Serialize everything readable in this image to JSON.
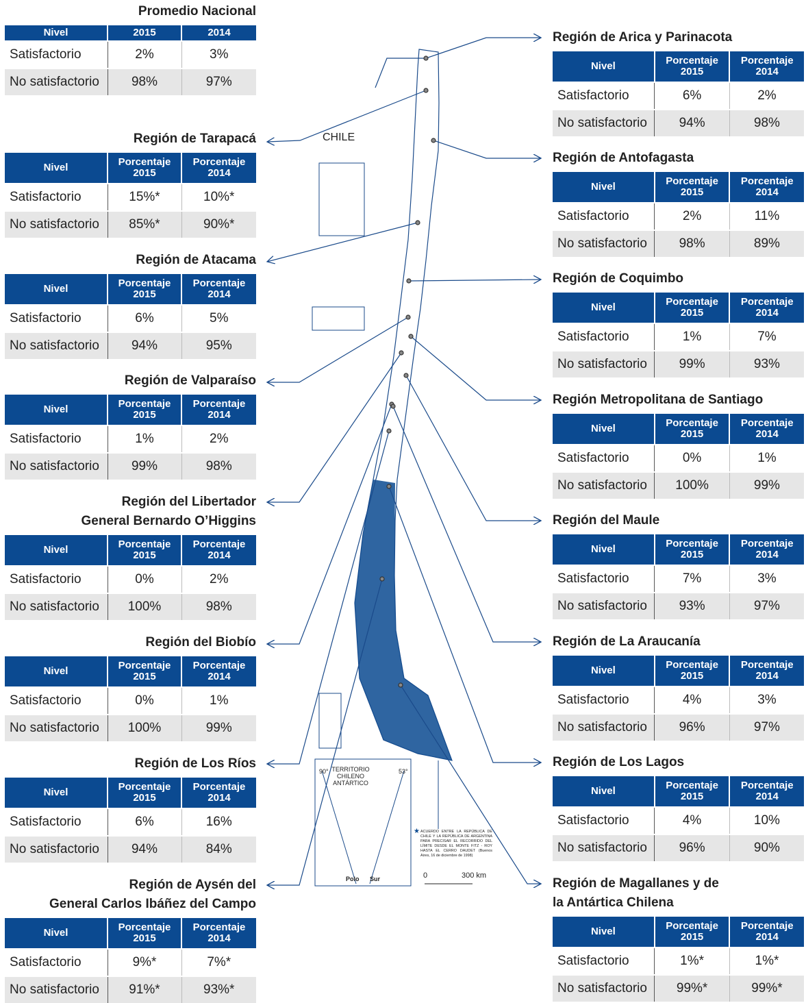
{
  "left": [
    {
      "title": "Promedio Nacional",
      "header": [
        "Nivel",
        "2015",
        "2014"
      ],
      "rows": [
        [
          "Satisfactorio",
          "2%",
          "3%"
        ],
        [
          "No satisfactorio",
          "98%",
          "97%"
        ]
      ]
    },
    {
      "title": "Región de Tarapacá",
      "header": [
        "Nivel",
        "Porcentaje\n2015",
        "Porcentaje\n2014"
      ],
      "rows": [
        [
          "Satisfactorio",
          "15%*",
          "10%*"
        ],
        [
          "No satisfactorio",
          "85%*",
          "90%*"
        ]
      ]
    },
    {
      "title": "Región de Atacama",
      "header": [
        "Nivel",
        "Porcentaje\n2015",
        "Porcentaje\n2014"
      ],
      "rows": [
        [
          "Satisfactorio",
          "6%",
          "5%"
        ],
        [
          "No satisfactorio",
          "94%",
          "95%"
        ]
      ]
    },
    {
      "title": "Región de Valparaíso",
      "header": [
        "Nivel",
        "Porcentaje\n2015",
        "Porcentaje\n2014"
      ],
      "rows": [
        [
          "Satisfactorio",
          "1%",
          "2%"
        ],
        [
          "No satisfactorio",
          "99%",
          "98%"
        ]
      ]
    },
    {
      "title": "Región del Libertador\nGeneral Bernardo O’Higgins",
      "header": [
        "Nivel",
        "Porcentaje\n2015",
        "Porcentaje\n2014"
      ],
      "rows": [
        [
          "Satisfactorio",
          "0%",
          "2%"
        ],
        [
          "No satisfactorio",
          "100%",
          "98%"
        ]
      ]
    },
    {
      "title": "Región del Biobío",
      "header": [
        "Nivel",
        "Porcentaje\n2015",
        "Porcentaje\n2014"
      ],
      "rows": [
        [
          "Satisfactorio",
          "0%",
          "1%"
        ],
        [
          "No satisfactorio",
          "100%",
          "99%"
        ]
      ]
    },
    {
      "title": "Región de Los Ríos",
      "header": [
        "Nivel",
        "Porcentaje\n2015",
        "Porcentaje\n2014"
      ],
      "rows": [
        [
          "Satisfactorio",
          "6%",
          "16%"
        ],
        [
          "No satisfactorio",
          "94%",
          "84%"
        ]
      ]
    },
    {
      "title": "Región de Aysén del\nGeneral Carlos Ibáñez del Campo",
      "header": [
        "Nivel",
        "Porcentaje\n2015",
        "Porcentaje\n2014"
      ],
      "rows": [
        [
          "Satisfactorio",
          "9%*",
          "7%*"
        ],
        [
          "No satisfactorio",
          "91%*",
          "93%*"
        ]
      ]
    }
  ],
  "right": [
    {
      "title": "Región de Arica y Parinacota",
      "header": [
        "Nivel",
        "Porcentaje\n2015",
        "Porcentaje\n2014"
      ],
      "rows": [
        [
          "Satisfactorio",
          "6%",
          "2%"
        ],
        [
          "No satisfactorio",
          "94%",
          "98%"
        ]
      ]
    },
    {
      "title": "Región de Antofagasta",
      "header": [
        "Nivel",
        "Porcentaje\n2015",
        "Porcentaje\n2014"
      ],
      "rows": [
        [
          "Satisfactorio",
          "2%",
          "11%"
        ],
        [
          "No satisfactorio",
          "98%",
          "89%"
        ]
      ]
    },
    {
      "title": "Región de Coquimbo",
      "header": [
        "Nivel",
        "Porcentaje\n2015",
        "Porcentaje\n2014"
      ],
      "rows": [
        [
          "Satisfactorio",
          "1%",
          "7%"
        ],
        [
          "No satisfactorio",
          "99%",
          "93%"
        ]
      ]
    },
    {
      "title": "Región Metropolitana de Santiago",
      "header": [
        "Nivel",
        "Porcentaje\n2015",
        "Porcentaje\n2014"
      ],
      "rows": [
        [
          "Satisfactorio",
          "0%",
          "1%"
        ],
        [
          "No satisfactorio",
          "100%",
          "99%"
        ]
      ]
    },
    {
      "title": "Región del Maule",
      "header": [
        "Nivel",
        "Porcentaje\n2015",
        "Porcentaje\n2014"
      ],
      "rows": [
        [
          "Satisfactorio",
          "7%",
          "3%"
        ],
        [
          "No satisfactorio",
          "93%",
          "97%"
        ]
      ]
    },
    {
      "title": "Región de La Araucanía",
      "header": [
        "Nivel",
        "Porcentaje\n2015",
        "Porcentaje\n2014"
      ],
      "rows": [
        [
          "Satisfactorio",
          "4%",
          "3%"
        ],
        [
          "No satisfactorio",
          "96%",
          "97%"
        ]
      ]
    },
    {
      "title": "Región de Los Lagos",
      "header": [
        "Nivel",
        "Porcentaje\n2015",
        "Porcentaje\n2014"
      ],
      "rows": [
        [
          "Satisfactorio",
          "4%",
          "10%"
        ],
        [
          "No satisfactorio",
          "96%",
          "90%"
        ]
      ]
    },
    {
      "title": "Región de Magallanes y de\nla Antártica Chilena",
      "header": [
        "Nivel",
        "Porcentaje\n2015",
        "Porcentaje\n2014"
      ],
      "rows": [
        [
          "Satisfactorio",
          "1%*",
          "1%*"
        ],
        [
          "No satisfactorio",
          "99%*",
          "99%*"
        ]
      ]
    }
  ],
  "map": {
    "country": "CHILE",
    "antarctic": "TERRITORIO\nCHILENO\nANTÁRTICO",
    "lon_west": "90°",
    "lon_east": "53°",
    "pole_1": "Polo",
    "pole_2": "Sur",
    "scale_start": "0",
    "scale_end": "300 km",
    "star": "★",
    "footnote": "ACUERDO ENTRE LA REPÚBLICA DE CHILE Y LA REPÚBLICA DE ARGENTINA PARA PRECISAR EL RECORRIDO DEL LÍMITE DESDE EL MONTE FITZ - ROY HASTA EL CERRO DAUDET (Buenos Aires, 16 de diciembre de 1998)"
  }
}
